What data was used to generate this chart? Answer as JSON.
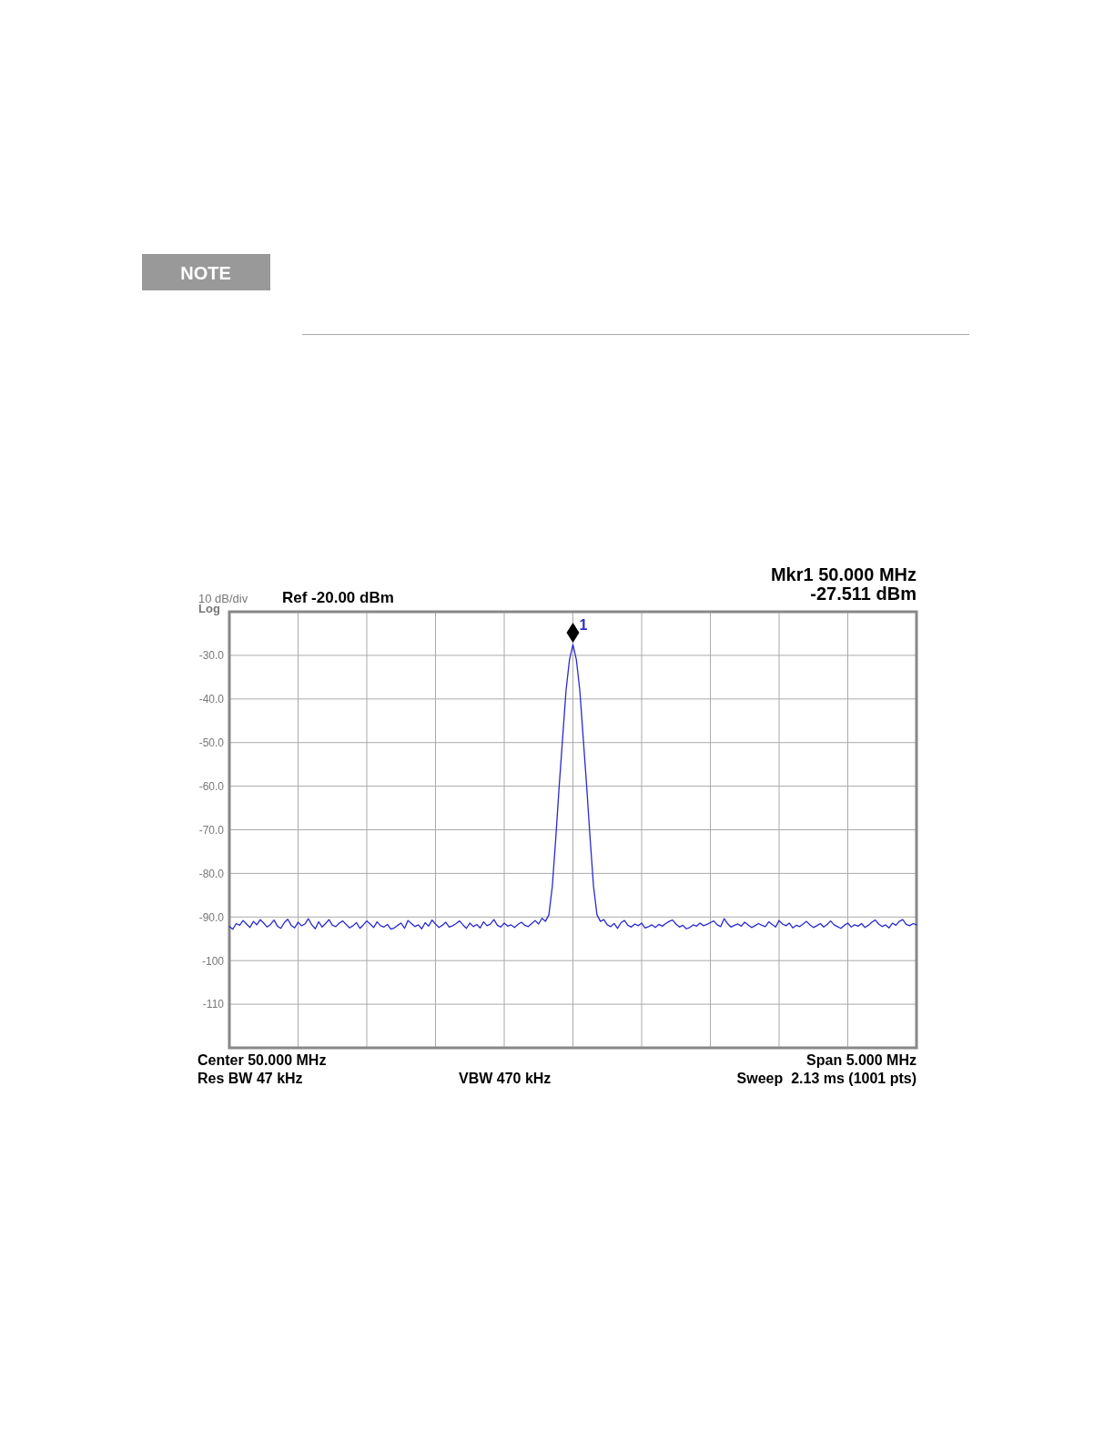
{
  "chart_data": {
    "type": "line",
    "categories": [
      null,
      null,
      null,
      null,
      null,
      null,
      null,
      null,
      null,
      null,
      null,
      null,
      null,
      null,
      null,
      null,
      null,
      null,
      null,
      null,
      null,
      null,
      null,
      null,
      null,
      null,
      null,
      null,
      null,
      null,
      null,
      null,
      null,
      null,
      null,
      null,
      null,
      null,
      null,
      null,
      null,
      null,
      null,
      null,
      null,
      null,
      null,
      null,
      null,
      null,
      null,
      null,
      null,
      null,
      null,
      null,
      null,
      null,
      null,
      null,
      null,
      null,
      null,
      null,
      null,
      null,
      null,
      null,
      null,
      null,
      null,
      null,
      null,
      null,
      null,
      null,
      null,
      null,
      null,
      null,
      null,
      null,
      null,
      null,
      null,
      null,
      null,
      null,
      null,
      null,
      null,
      null,
      null,
      null,
      null,
      null,
      null,
      null,
      null,
      null,
      null,
      null,
      null,
      null,
      null,
      null,
      null,
      null,
      null,
      null,
      null,
      null,
      null,
      null,
      null,
      null,
      null,
      null,
      null,
      null,
      null,
      null,
      null,
      null,
      null,
      null,
      null,
      null,
      null,
      null,
      null,
      null,
      null,
      null,
      null,
      null,
      null,
      null,
      null,
      null,
      null,
      null,
      null,
      null,
      null,
      null,
      null,
      null,
      null,
      null,
      null,
      null,
      null,
      null,
      null,
      null,
      null,
      null,
      null,
      null,
      null,
      null,
      null,
      null,
      null,
      null,
      null,
      null,
      null,
      null,
      null,
      null,
      null,
      null,
      null,
      null,
      null,
      null,
      null,
      null,
      null,
      null,
      null,
      null,
      null,
      null,
      null,
      null,
      null,
      null,
      null,
      null,
      null,
      null,
      null,
      null,
      null,
      null,
      null,
      null,
      null
    ],
    "series": [
      {
        "color": "#2a2ad0",
        "values": [
          -92.2,
          -92.8,
          -91.5,
          -91.9,
          -90.8,
          -91.6,
          -92.4,
          -91.0,
          -91.8,
          -90.6,
          -91.4,
          -92.3,
          -91.7,
          -90.7,
          -92.1,
          -92.6,
          -91.3,
          -90.5,
          -91.9,
          -92.5,
          -91.2,
          -92.0,
          -91.6,
          -90.4,
          -91.8,
          -92.7,
          -91.1,
          -92.3,
          -91.5,
          -90.6,
          -91.9,
          -92.2,
          -91.4,
          -90.9,
          -91.7,
          -92.5,
          -92.0,
          -91.3,
          -92.6,
          -91.8,
          -90.9,
          -91.6,
          -92.4,
          -91.1,
          -92.0,
          -92.3,
          -91.7,
          -92.8,
          -92.5,
          -91.9,
          -91.4,
          -92.6,
          -90.8,
          -91.5,
          -92.2,
          -91.8,
          -92.7,
          -91.3,
          -92.1,
          -90.7,
          -91.6,
          -92.4,
          -91.9,
          -91.2,
          -92.3,
          -92.0,
          -91.5,
          -90.9,
          -91.8,
          -92.6,
          -91.4,
          -92.2,
          -91.7,
          -92.5,
          -91.1,
          -92.0,
          -91.6,
          -90.6,
          -91.9,
          -92.3,
          -91.4,
          -92.1,
          -91.8,
          -92.4,
          -91.7,
          -91.2,
          -91.9,
          -92.2,
          -91.5,
          -90.8,
          -91.6,
          -90.3,
          -91.0,
          -89.5,
          -83,
          -72,
          -60,
          -49,
          -38,
          -31,
          -27.5,
          -31,
          -38,
          -49,
          -60,
          -72,
          -83,
          -89.5,
          -91.0,
          -90.6,
          -91.8,
          -92.2,
          -91.5,
          -92.6,
          -91.3,
          -90.8,
          -91.9,
          -92.3,
          -91.6,
          -92.0,
          -91.4,
          -92.5,
          -92.2,
          -91.8,
          -92.4,
          -91.7,
          -92.1,
          -91.5,
          -91.0,
          -90.7,
          -91.6,
          -92.3,
          -91.9,
          -92.7,
          -92.4,
          -91.8,
          -92.1,
          -91.4,
          -92.0,
          -91.7,
          -91.3,
          -90.9,
          -91.8,
          -92.2,
          -90.4,
          -91.5,
          -92.3,
          -91.9,
          -91.6,
          -92.1,
          -91.2,
          -91.8,
          -92.4,
          -92.0,
          -91.5,
          -91.9,
          -92.2,
          -91.1,
          -91.7,
          -92.3,
          -90.8,
          -91.6,
          -92.0,
          -91.4,
          -92.5,
          -91.9,
          -92.2,
          -91.6,
          -91.0,
          -91.8,
          -92.4,
          -92.0,
          -91.5,
          -92.3,
          -91.7,
          -90.9,
          -91.8,
          -92.2,
          -92.6,
          -91.9,
          -91.4,
          -92.3,
          -91.8,
          -92.1,
          -91.5,
          -92.4,
          -91.9,
          -91.2,
          -90.7,
          -91.6,
          -92.2,
          -91.8,
          -92.5,
          -91.4,
          -91.9,
          -91.0,
          -90.6,
          -91.7,
          -92.0,
          -91.5,
          -91.8
        ]
      }
    ],
    "ylim": [
      -120,
      -20
    ],
    "yticks": [
      {
        "value": -30,
        "label": "-30.0"
      },
      {
        "value": -40,
        "label": "-40.0"
      },
      {
        "value": -50,
        "label": "-50.0"
      },
      {
        "value": -60,
        "label": "-60.0"
      },
      {
        "value": -70,
        "label": "-70.0"
      },
      {
        "value": -80,
        "label": "-80.0"
      },
      {
        "value": -90,
        "label": "-90.0"
      },
      -100,
      -110
    ],
    "tick_labels": "y",
    "grid": true,
    "annotations": [
      "NOTE",
      "10 dB/div",
      "Log",
      "Ref -20.00 dBm",
      "Mkr1 50.000 MHz",
      "-27.511 dBm",
      "Center 50.000 MHz",
      "Span 5.000 MHz",
      "Res BW 47 kHz",
      "VBW 470 kHz",
      "Sweep  2.13 ms (1001 pts)",
      "1"
    ]
  }
}
